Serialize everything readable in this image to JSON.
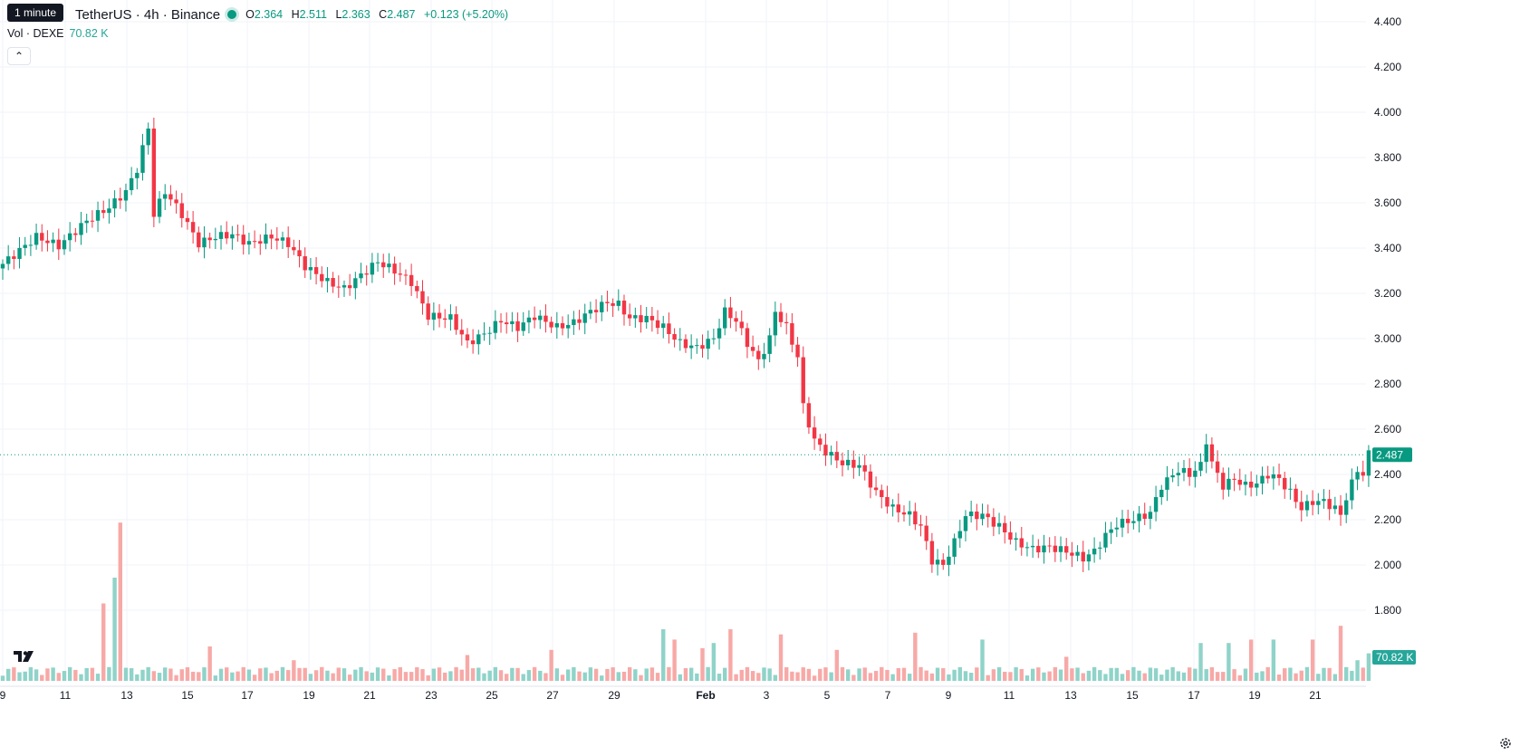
{
  "tooltip": "1 minute",
  "legend": {
    "symbol": "TetherUS · 4h · Binance",
    "o_label": "O",
    "o": "2.364",
    "h_label": "H",
    "h": "2.511",
    "l_label": "L",
    "l": "2.363",
    "c_label": "C",
    "c": "2.487",
    "change": "+0.123 (+5.20%)"
  },
  "volume_legend": {
    "label": "Vol · DEXE",
    "value": "70.82 K"
  },
  "colors": {
    "up": "#089981",
    "down": "#f23645",
    "vol_up": "#8fd3c9",
    "vol_down": "#f7a9a7",
    "grid": "#f0f3fa",
    "axis_text": "#131722"
  },
  "icons": {
    "collapse": "chevron-up-icon",
    "logo": "tradingview-logo",
    "settings": "gear-icon"
  },
  "chart_data": {
    "type": "candlestick",
    "interval": "4h",
    "y_ticks": [
      "4.400",
      "4.200",
      "4.000",
      "3.800",
      "3.600",
      "3.400",
      "3.200",
      "3.000",
      "2.800",
      "2.600",
      "2.400",
      "2.200",
      "2.000",
      "1.800"
    ],
    "ylim": [
      1.7,
      4.45
    ],
    "x_ticks": [
      "9",
      "11",
      "13",
      "15",
      "17",
      "19",
      "21",
      "23",
      "25",
      "27",
      "29",
      "Feb",
      "3",
      "5",
      "7",
      "9",
      "11",
      "13",
      "15",
      "17",
      "19",
      "21"
    ],
    "last_price": "2.487",
    "last_volume": "70.82 K",
    "grid": true,
    "keypoints": [
      [
        0,
        3.33
      ],
      [
        6,
        3.45
      ],
      [
        10,
        3.41
      ],
      [
        15,
        3.52
      ],
      [
        19,
        3.58
      ],
      [
        22,
        3.65
      ],
      [
        24,
        3.75
      ],
      [
        26,
        3.93
      ],
      [
        27,
        3.55
      ],
      [
        29,
        3.65
      ],
      [
        32,
        3.55
      ],
      [
        35,
        3.42
      ],
      [
        38,
        3.45
      ],
      [
        41,
        3.46
      ],
      [
        44,
        3.42
      ],
      [
        48,
        3.45
      ],
      [
        51,
        3.42
      ],
      [
        54,
        3.32
      ],
      [
        58,
        3.25
      ],
      [
        61,
        3.22
      ],
      [
        64,
        3.28
      ],
      [
        67,
        3.34
      ],
      [
        70,
        3.3
      ],
      [
        73,
        3.25
      ],
      [
        76,
        3.1
      ],
      [
        80,
        3.09
      ],
      [
        83,
        2.98
      ],
      [
        86,
        3.02
      ],
      [
        89,
        3.08
      ],
      [
        92,
        3.05
      ],
      [
        95,
        3.1
      ],
      [
        99,
        3.05
      ],
      [
        102,
        3.07
      ],
      [
        105,
        3.12
      ],
      [
        108,
        3.16
      ],
      [
        110,
        3.15
      ],
      [
        112,
        3.09
      ],
      [
        115,
        3.09
      ],
      [
        118,
        3.05
      ],
      [
        121,
        2.98
      ],
      [
        124,
        2.96
      ],
      [
        127,
        3.0
      ],
      [
        129,
        3.12
      ],
      [
        131,
        3.08
      ],
      [
        133,
        2.98
      ],
      [
        135,
        2.9
      ],
      [
        137,
        3.0
      ],
      [
        138,
        3.12
      ],
      [
        140,
        3.05
      ],
      [
        142,
        2.92
      ],
      [
        143,
        2.7
      ],
      [
        145,
        2.55
      ],
      [
        147,
        2.5
      ],
      [
        150,
        2.45
      ],
      [
        153,
        2.44
      ],
      [
        156,
        2.32
      ],
      [
        159,
        2.25
      ],
      [
        162,
        2.22
      ],
      [
        164,
        2.17
      ],
      [
        166,
        2.02
      ],
      [
        168,
        2.0
      ],
      [
        170,
        2.1
      ],
      [
        172,
        2.22
      ],
      [
        175,
        2.22
      ],
      [
        178,
        2.17
      ],
      [
        181,
        2.1
      ],
      [
        184,
        2.07
      ],
      [
        187,
        2.08
      ],
      [
        190,
        2.06
      ],
      [
        193,
        2.03
      ],
      [
        195,
        2.06
      ],
      [
        197,
        2.13
      ],
      [
        199,
        2.18
      ],
      [
        202,
        2.2
      ],
      [
        205,
        2.23
      ],
      [
        207,
        2.35
      ],
      [
        210,
        2.42
      ],
      [
        212,
        2.4
      ],
      [
        214,
        2.44
      ],
      [
        215,
        2.55
      ],
      [
        216,
        2.45
      ],
      [
        218,
        2.35
      ],
      [
        220,
        2.38
      ],
      [
        222,
        2.35
      ],
      [
        224,
        2.36
      ],
      [
        226,
        2.4
      ],
      [
        228,
        2.38
      ],
      [
        230,
        2.32
      ],
      [
        232,
        2.25
      ],
      [
        234,
        2.28
      ],
      [
        236,
        2.28
      ],
      [
        238,
        2.25
      ],
      [
        239,
        2.22
      ],
      [
        240,
        2.3
      ],
      [
        242,
        2.42
      ],
      [
        243,
        2.4
      ],
      [
        244,
        2.49
      ]
    ],
    "volume_spikes": [
      [
        18,
        0.45
      ],
      [
        20,
        0.6
      ],
      [
        21,
        0.92
      ],
      [
        37,
        0.2
      ],
      [
        52,
        0.12
      ],
      [
        83,
        0.15
      ],
      [
        98,
        0.18
      ],
      [
        118,
        0.3
      ],
      [
        120,
        0.24
      ],
      [
        125,
        0.19
      ],
      [
        127,
        0.22
      ],
      [
        130,
        0.3
      ],
      [
        139,
        0.27
      ],
      [
        149,
        0.18
      ],
      [
        163,
        0.28
      ],
      [
        175,
        0.24
      ],
      [
        190,
        0.14
      ],
      [
        214,
        0.22
      ],
      [
        219,
        0.22
      ],
      [
        223,
        0.24
      ],
      [
        227,
        0.24
      ],
      [
        234,
        0.24
      ],
      [
        239,
        0.32
      ],
      [
        242,
        0.12
      ],
      [
        244,
        0.16
      ]
    ]
  }
}
